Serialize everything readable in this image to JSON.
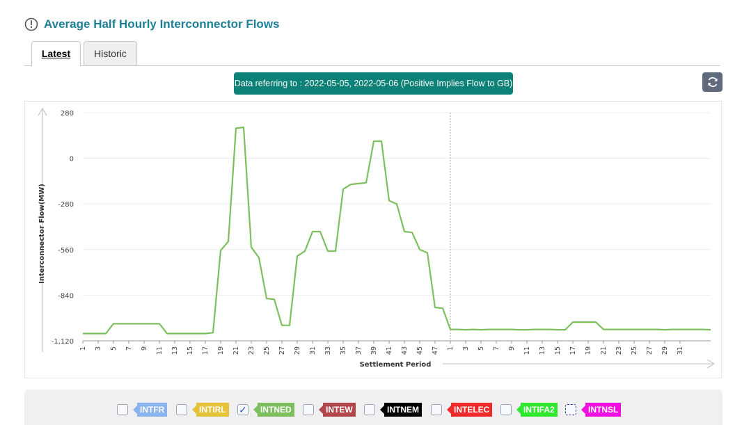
{
  "page": {
    "title": "Average Half Hourly Interconnector Flows",
    "tabs": [
      {
        "label": "Latest"
      },
      {
        "label": "Historic"
      }
    ],
    "banner": "Data referring to : 2022-05-05, 2022-05-06 (Positive Implies Flow to GB)"
  },
  "colors": {
    "title": "#1d7f95",
    "banner": "#0b8178",
    "line": "#7dbf5f"
  },
  "chart_data": {
    "type": "line",
    "xlabel": "Settlement Period",
    "ylabel": "Interconnector Flow(MW)",
    "ylim": [
      -1120,
      280
    ],
    "yticks": [
      280,
      0,
      -280,
      -560,
      -840,
      -1120
    ],
    "ytick_labels": [
      "280",
      "0",
      "-280",
      "-560",
      "-840",
      "-1,120"
    ],
    "x_tick_labels": [
      "1",
      "3",
      "5",
      "7",
      "9",
      "11",
      "13",
      "15",
      "17",
      "19",
      "21",
      "23",
      "25",
      "27",
      "29",
      "31",
      "33",
      "35",
      "37",
      "39",
      "41",
      "43",
      "45",
      "47",
      "1",
      "3",
      "5",
      "7",
      "9",
      "11",
      "13",
      "15",
      "17",
      "19",
      "21",
      "23",
      "25",
      "27",
      "29",
      "31"
    ],
    "day_divider_after_point": 48,
    "series": [
      {
        "name": "INTNED",
        "values": [
          -1075,
          -1075,
          -1075,
          -1075,
          -1015,
          -1015,
          -1015,
          -1015,
          -1015,
          -1015,
          -1015,
          -1075,
          -1075,
          -1075,
          -1075,
          -1075,
          -1075,
          -1070,
          -565,
          -510,
          185,
          190,
          -545,
          -610,
          -860,
          -865,
          -1025,
          -1025,
          -600,
          -570,
          -450,
          -450,
          -570,
          -570,
          -190,
          -160,
          -155,
          -150,
          105,
          105,
          -260,
          -280,
          -450,
          -455,
          -560,
          -580,
          -915,
          -920,
          -1050,
          -1050,
          -1052,
          -1050,
          -1052,
          -1050,
          -1050,
          -1050,
          -1050,
          -1052,
          -1052,
          -1050,
          -1050,
          -1050,
          -1052,
          -1052,
          -1005,
          -1005,
          -1005,
          -1005,
          -1050,
          -1050,
          -1050,
          -1050,
          -1050,
          -1050,
          -1050,
          -1050,
          -1052,
          -1050,
          -1050,
          -1050,
          -1050,
          -1050,
          -1052
        ]
      }
    ],
    "legend": [
      {
        "name": "INTFR",
        "color": "#8ab4f0",
        "checked": false
      },
      {
        "name": "INTIRL",
        "color": "#e6c13a",
        "checked": false
      },
      {
        "name": "INTNED",
        "color": "#7dbf5f",
        "checked": true
      },
      {
        "name": "INTEW",
        "color": "#b0484b",
        "checked": false
      },
      {
        "name": "INTNEM",
        "color": "#000000",
        "checked": false
      },
      {
        "name": "INTELEC",
        "color": "#f02a2a",
        "checked": false
      },
      {
        "name": "INTIFA2",
        "color": "#2fe82f",
        "checked": false
      },
      {
        "name": "INTNSL",
        "color": "#f010e0",
        "checked": false
      }
    ]
  }
}
